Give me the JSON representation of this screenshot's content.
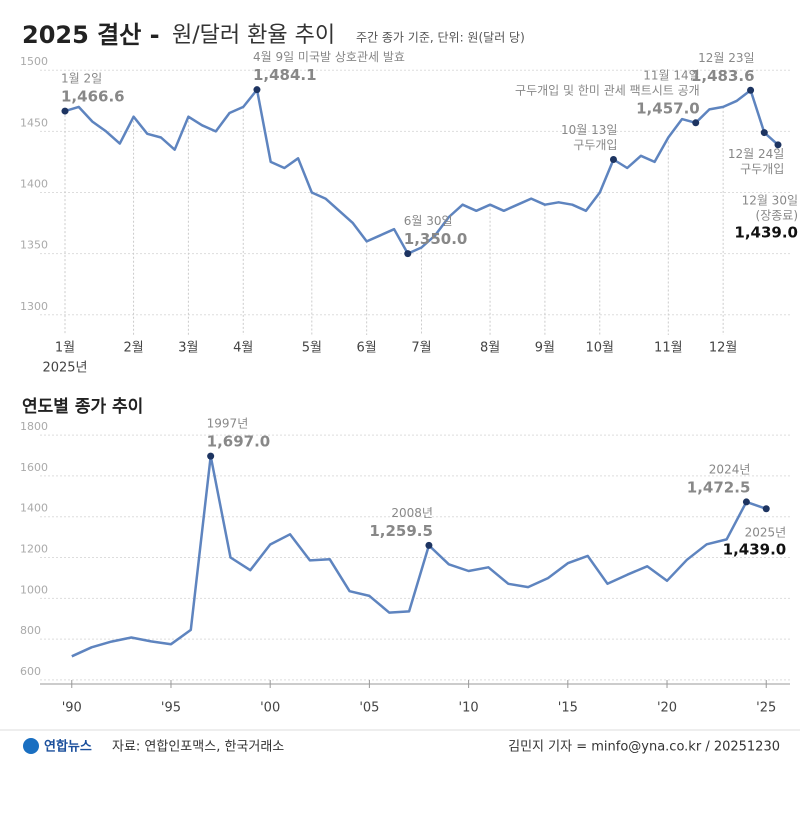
{
  "chart_data": [
    {
      "type": "line",
      "title": "2025 결산 -",
      "title_rest": "원/달러 환율 추이",
      "subtitle": "주간 종가 기준, 단위: 원(달러 당)",
      "year_label": "2025년",
      "color": "#5e84bf",
      "point_color": "#1d3461",
      "grid": true,
      "ylim": [
        1290,
        1510
      ],
      "yticks": [
        1300,
        1350,
        1400,
        1450,
        1500
      ],
      "categories": [
        "1월",
        null,
        null,
        null,
        null,
        "2월",
        null,
        null,
        null,
        "3월",
        null,
        null,
        null,
        "4월",
        null,
        null,
        null,
        null,
        "5월",
        null,
        null,
        null,
        "6월",
        null,
        null,
        null,
        "7월",
        null,
        null,
        null,
        null,
        "8월",
        null,
        null,
        null,
        "9월",
        null,
        null,
        null,
        "10월",
        null,
        null,
        null,
        null,
        "11월",
        null,
        null,
        null,
        "12월",
        null,
        null,
        null,
        null
      ],
      "values": [
        1466.6,
        1470,
        1458,
        1450,
        1440,
        1462,
        1448,
        1445,
        1435,
        1462,
        1455,
        1450,
        1465,
        1470,
        1484.1,
        1425,
        1420,
        1428,
        1400,
        1395,
        1385,
        1375,
        1360,
        1365,
        1370,
        1350.0,
        1355,
        1365,
        1380,
        1390,
        1385,
        1390,
        1385,
        1390,
        1395,
        1390,
        1392,
        1390,
        1385,
        1400,
        1427,
        1420,
        1430,
        1425,
        1445,
        1460,
        1457.0,
        1468,
        1470,
        1475,
        1483.6,
        1449,
        1439.0
      ],
      "value_labels": [
        "1,466.6",
        null,
        null,
        null,
        null,
        null,
        null,
        null,
        null,
        null,
        null,
        null,
        null,
        null,
        "1,484.1",
        null,
        null,
        null,
        null,
        null,
        null,
        null,
        null,
        null,
        null,
        "1,350.0",
        null,
        null,
        null,
        null,
        null,
        null,
        null,
        null,
        null,
        null,
        null,
        null,
        null,
        null,
        null,
        null,
        null,
        null,
        null,
        null,
        "1,457.0",
        null,
        null,
        null,
        "1,483.6",
        null,
        "1,439.0"
      ],
      "notes": [
        [
          "1월 2일"
        ],
        null,
        null,
        null,
        null,
        null,
        null,
        null,
        null,
        null,
        null,
        null,
        null,
        null,
        [
          "4월 9일 미국발 상호관세 발효"
        ],
        null,
        null,
        null,
        null,
        null,
        null,
        null,
        null,
        null,
        null,
        [
          "6월 30일"
        ],
        null,
        null,
        null,
        null,
        null,
        null,
        null,
        null,
        null,
        null,
        null,
        null,
        null,
        null,
        [
          "10월 13일",
          "구두개입"
        ],
        null,
        null,
        null,
        null,
        null,
        [
          "11월 14일",
          "구두개입 및 한미 관세 팩트시트 공개"
        ],
        null,
        null,
        null,
        [
          "12월 23일"
        ],
        [
          "12월 24일",
          "구두개입"
        ],
        [
          "12월 30일",
          "(장종료)"
        ]
      ]
    },
    {
      "type": "line",
      "title": "연도별 종가 추이",
      "color": "#5e84bf",
      "point_color": "#1d3461",
      "grid": true,
      "xlim": [
        1988.5,
        2026.5
      ],
      "xticks": [
        {
          "value": 1990,
          "label": "'90"
        },
        {
          "value": 1995,
          "label": "'95"
        },
        {
          "value": 2000,
          "label": "'00"
        },
        {
          "value": 2005,
          "label": "'05"
        },
        {
          "value": 2010,
          "label": "'10"
        },
        {
          "value": 2015,
          "label": "'15"
        },
        {
          "value": 2020,
          "label": "'20"
        },
        {
          "value": 2025,
          "label": "'25"
        }
      ],
      "ylim": [
        580,
        1830
      ],
      "yticks": [
        600,
        800,
        1000,
        1200,
        1400,
        1600,
        1800
      ],
      "x": [
        1990,
        1991,
        1992,
        1993,
        1994,
        1995,
        1996,
        1997,
        1998,
        1999,
        2000,
        2001,
        2002,
        2003,
        2004,
        2005,
        2006,
        2007,
        2008,
        2009,
        2010,
        2011,
        2012,
        2013,
        2014,
        2015,
        2016,
        2017,
        2018,
        2019,
        2020,
        2021,
        2022,
        2023,
        2024,
        2025
      ],
      "values": [
        716,
        760,
        788,
        808,
        789,
        775,
        845,
        1697.0,
        1200,
        1138,
        1264,
        1314,
        1186,
        1192,
        1035,
        1012,
        930,
        936,
        1259.5,
        1167,
        1134,
        1152,
        1071,
        1055,
        1099,
        1172,
        1208,
        1071,
        1116,
        1157,
        1086,
        1189,
        1265,
        1289,
        1472.5,
        1439.0
      ],
      "value_labels": [
        null,
        null,
        null,
        null,
        null,
        null,
        null,
        "1,697.0",
        null,
        null,
        null,
        null,
        null,
        null,
        null,
        null,
        null,
        null,
        "1,259.5",
        null,
        null,
        null,
        null,
        null,
        null,
        null,
        null,
        null,
        null,
        null,
        null,
        null,
        null,
        null,
        "1,472.5",
        "1,439.0"
      ],
      "notes": [
        null,
        null,
        null,
        null,
        null,
        null,
        null,
        [
          "1997년"
        ],
        null,
        null,
        null,
        null,
        null,
        null,
        null,
        null,
        null,
        null,
        [
          "2008년"
        ],
        null,
        null,
        null,
        null,
        null,
        null,
        null,
        null,
        null,
        null,
        null,
        null,
        null,
        null,
        null,
        [
          "2024년"
        ],
        [
          "2025년"
        ]
      ]
    }
  ],
  "footer": {
    "logo": "연합뉴스",
    "source": "자료: 연합인포맥스, 한국거래소",
    "credit": "김민지 기자 = minfo@yna.co.kr / 20251230"
  }
}
